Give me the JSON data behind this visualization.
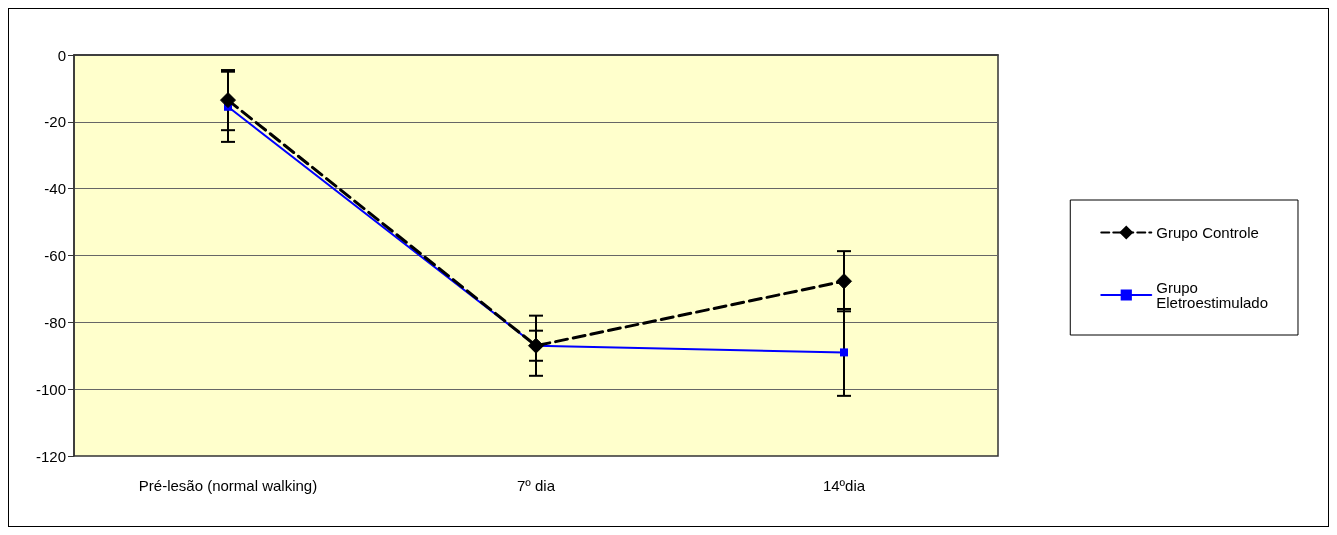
{
  "chart_data": {
    "type": "line",
    "categories": [
      "Pré-lesão (normal walking)",
      "7º dia",
      "14ºdia"
    ],
    "series": [
      {
        "name": "Grupo Controle",
        "color": "#000000",
        "values": [
          -13.5,
          -87,
          -67.7
        ],
        "errors": [
          9,
          9,
          9
        ],
        "marker": "diamond",
        "line_style": "dashed"
      },
      {
        "name": "Grupo Eletroestimulado",
        "color": "#0000ff",
        "values": [
          -15.5,
          -87,
          -89
        ],
        "errors": [
          10.5,
          4.5,
          13
        ],
        "marker": "square",
        "line_style": "solid"
      }
    ],
    "ylim": [
      -120,
      0
    ],
    "yticks": [
      -120,
      -100,
      -80,
      -60,
      -40,
      -20,
      0
    ],
    "grid": "y",
    "legend": "right"
  }
}
